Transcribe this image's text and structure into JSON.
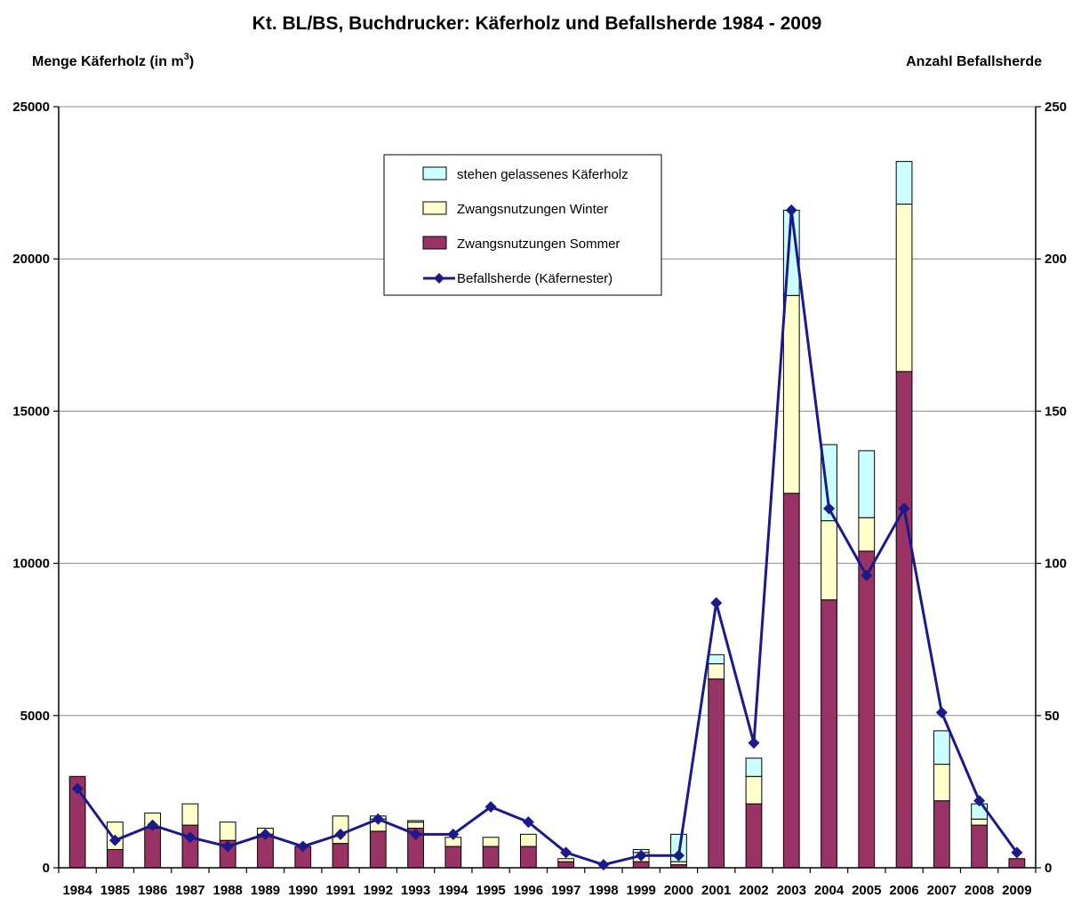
{
  "chart_data": {
    "type": "bar",
    "title": "Kt. BL/BS, Buchdrucker: Käferholz und Befallsherde 1984 - 2009",
    "ylabel_left": "Menge Käferholz (in m",
    "ylabel_left_sup": "3",
    "ylabel_left_close": ")",
    "ylabel_right": "Anzahl Befallsherde",
    "ylim_left": [
      0,
      25000
    ],
    "ylim_right": [
      0,
      250
    ],
    "yticks_left": [
      "0",
      "5000",
      "10000",
      "15000",
      "20000",
      "25000"
    ],
    "yticks_right": [
      "0",
      "50",
      "100",
      "150",
      "200",
      "250"
    ],
    "grid": true,
    "legend_position": "top-center",
    "categories": [
      "1984",
      "1985",
      "1986",
      "1987",
      "1988",
      "1989",
      "1990",
      "1991",
      "1992",
      "1993",
      "1994",
      "1995",
      "1996",
      "1997",
      "1998",
      "1999",
      "2000",
      "2001",
      "2002",
      "2003",
      "2004",
      "2005",
      "2006",
      "2007",
      "2008",
      "2009"
    ],
    "series": [
      {
        "name": "Zwangsnutzungen Sommer",
        "kind": "bar",
        "color": "#993366",
        "values": [
          3000,
          600,
          1300,
          1400,
          900,
          1100,
          700,
          800,
          1200,
          1300,
          700,
          700,
          700,
          200,
          0,
          200,
          100,
          6200,
          2100,
          12300,
          8800,
          10400,
          16300,
          2200,
          1400,
          300
        ]
      },
      {
        "name": "Zwangsnutzungen Winter",
        "kind": "bar",
        "color": "#ffffcc",
        "values": [
          0,
          900,
          500,
          700,
          600,
          200,
          0,
          900,
          400,
          200,
          300,
          300,
          400,
          100,
          0,
          300,
          100,
          500,
          900,
          6500,
          2600,
          1100,
          5500,
          1200,
          200,
          0
        ]
      },
      {
        "name": "stehen gelassenes Käferholz",
        "kind": "bar",
        "color": "#ccffff",
        "values": [
          0,
          0,
          0,
          0,
          0,
          0,
          0,
          0,
          100,
          50,
          0,
          0,
          0,
          0,
          0,
          100,
          900,
          300,
          600,
          2800,
          2500,
          2200,
          1400,
          1100,
          500,
          0
        ]
      },
      {
        "name": "Befallsherde (Käfernester)",
        "kind": "line",
        "axis": "right",
        "color": "#1a1a8c",
        "values": [
          26,
          9,
          14,
          10,
          7,
          11,
          7,
          11,
          16,
          11,
          11,
          20,
          15,
          5,
          1,
          4,
          4,
          87,
          41,
          216,
          118,
          96,
          118,
          51,
          22,
          5
        ]
      }
    ]
  }
}
